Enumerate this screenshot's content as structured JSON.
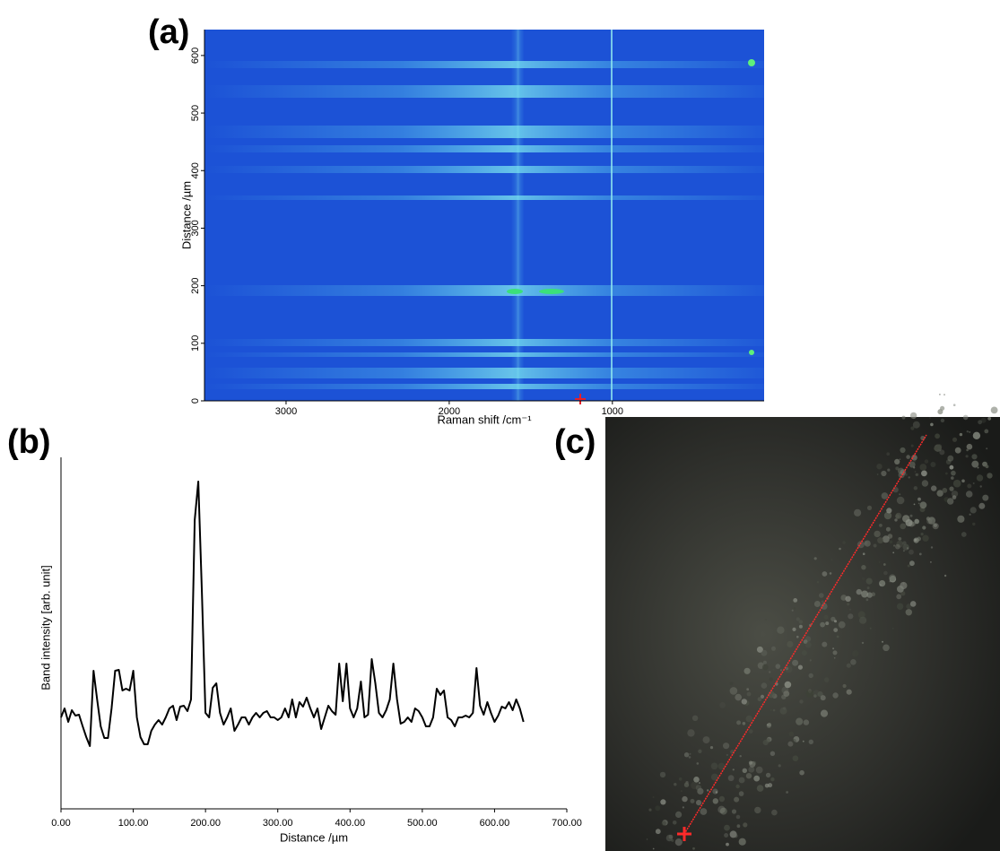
{
  "chart_data": [
    {
      "type": "heatmap",
      "label": "(a)",
      "xlabel": "Raman shift /cm⁻¹",
      "ylabel": "Distance /µm",
      "xlim": [
        3500,
        70
      ],
      "ylim": [
        0,
        645
      ],
      "xticks": [
        3000,
        2000,
        1000
      ],
      "yticks": [
        0,
        100,
        200,
        300,
        400,
        500,
        600
      ]
    },
    {
      "type": "line",
      "label": "(b)",
      "xlabel": "Distance  /µm",
      "ylabel": "Band intensity [arb. unit]",
      "xlim": [
        0,
        700
      ],
      "ylim": [
        0,
        392
      ],
      "xticks": [
        {
          "value": 0,
          "label": "0.00"
        },
        {
          "value": 100,
          "label": "100.00"
        },
        {
          "value": 200,
          "label": "200.00"
        },
        {
          "value": 300,
          "label": "300.00"
        },
        {
          "value": 400,
          "label": "400.00"
        },
        {
          "value": 500,
          "label": "500.00"
        },
        {
          "value": 600,
          "label": "600.00"
        },
        {
          "value": 700,
          "label": "700.00"
        }
      ],
      "x": [
        0,
        5,
        10,
        15,
        20,
        25,
        30,
        35,
        40,
        45,
        50,
        55,
        60,
        65,
        70,
        75,
        80,
        85,
        90,
        95,
        100,
        105,
        110,
        115,
        120,
        125,
        130,
        135,
        140,
        145,
        150,
        155,
        160,
        165,
        170,
        175,
        180,
        185,
        190,
        195,
        200,
        205,
        210,
        215,
        220,
        225,
        230,
        235,
        240,
        245,
        250,
        255,
        260,
        265,
        270,
        275,
        280,
        285,
        290,
        295,
        300,
        305,
        310,
        315,
        320,
        325,
        330,
        335,
        340,
        345,
        350,
        355,
        360,
        365,
        370,
        375,
        380,
        385,
        390,
        395,
        400,
        405,
        410,
        415,
        420,
        425,
        430,
        435,
        440,
        445,
        450,
        455,
        460,
        465,
        470,
        475,
        480,
        485,
        490,
        495,
        500,
        505,
        510,
        515,
        520,
        525,
        530,
        535,
        540,
        545,
        550,
        555,
        560,
        565,
        570,
        575,
        580,
        585,
        590,
        595,
        600,
        605,
        610,
        615,
        620,
        625,
        630,
        635,
        640
      ],
      "series": [
        {
          "color": "#000000",
          "values": [
            102,
            112,
            97,
            110,
            104,
            105,
            92,
            80,
            70,
            154,
            122,
            92,
            79,
            79,
            112,
            154,
            155,
            132,
            134,
            132,
            154,
            102,
            80,
            72,
            72,
            87,
            94,
            99,
            94,
            102,
            112,
            115,
            99,
            114,
            115,
            109,
            122,
            322,
            365,
            242,
            107,
            102,
            135,
            140,
            107,
            94,
            102,
            112,
            87,
            94,
            102,
            102,
            94,
            102,
            107,
            102,
            107,
            109,
            102,
            102,
            99,
            102,
            112,
            102,
            122,
            102,
            119,
            114,
            124,
            112,
            102,
            112,
            89,
            102,
            115,
            109,
            105,
            162,
            120,
            162,
            112,
            102,
            112,
            142,
            102,
            105,
            167,
            140,
            107,
            102,
            110,
            122,
            162,
            122,
            95,
            97,
            102,
            97,
            112,
            109,
            102,
            92,
            92,
            102,
            134,
            127,
            132,
            102,
            99,
            92,
            102,
            102,
            104,
            102,
            107,
            157,
            115,
            105,
            119,
            107,
            97,
            104,
            114,
            112,
            119,
            110,
            122,
            112,
            97
          ]
        }
      ]
    },
    {
      "type": "image",
      "label": "(c)"
    }
  ]
}
